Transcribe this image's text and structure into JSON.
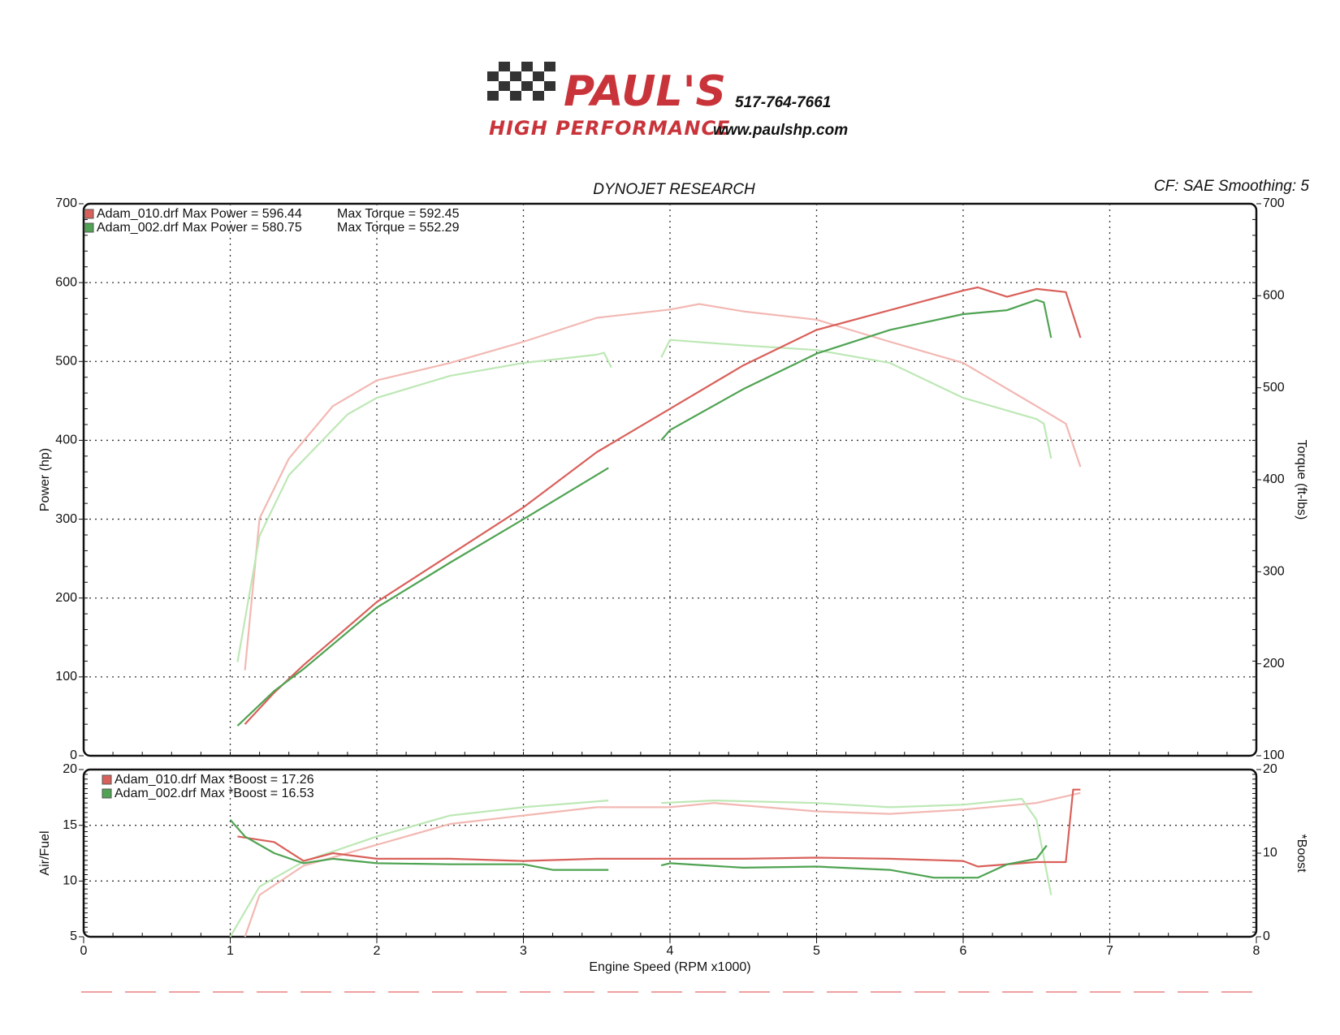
{
  "header": {
    "brand": "PAUL'S",
    "tagline": "HIGH PERFORMANCE",
    "phone": "517-764-7661",
    "website": "www.paulshp.com"
  },
  "chart_data": [
    {
      "type": "line",
      "title": "DYNOJET RESEARCH",
      "subtitle": "CF: SAE  Smoothing: 5",
      "ylabel": "Power (hp)",
      "y2label": "Torque (ft-lbs)",
      "xlim": [
        0,
        8
      ],
      "xticks": [
        0,
        1,
        2,
        3,
        4,
        5,
        6,
        7,
        8
      ],
      "xtick_labels": false,
      "ylim": [
        0,
        700
      ],
      "yticks": [
        0,
        100,
        200,
        300,
        400,
        500,
        600,
        700
      ],
      "y2lim": [
        100,
        700
      ],
      "y2ticks": [
        100,
        200,
        300,
        400,
        500,
        600,
        700
      ],
      "grid": true,
      "legend": "top-left",
      "series": [
        {
          "name": "Adam_010.drf",
          "stats": [
            "Max Power = 596.44",
            "Max Torque = 592.45"
          ],
          "color": "#d9605a",
          "x": [
            1.1,
            1.3,
            1.5,
            2.0,
            2.5,
            3.0,
            3.5,
            4.0,
            4.5,
            5.0,
            5.5,
            6.0,
            6.1,
            6.3,
            6.5,
            6.7,
            6.8
          ],
          "values": [
            40,
            80,
            115,
            195,
            255,
            315,
            385,
            440,
            495,
            540,
            565,
            590,
            594,
            582,
            592,
            588,
            530
          ]
        },
        {
          "name": "Adam_002.drf",
          "stats": [
            "Max Power = 580.75",
            "Max Torque = 552.29"
          ],
          "color": "#4fa352",
          "x": [
            1.05,
            1.3,
            1.5,
            2.0,
            2.5,
            3.0,
            3.58,
            3.75,
            3.94,
            4.0,
            4.5,
            5.0,
            5.5,
            6.0,
            6.3,
            6.5,
            6.55,
            6.6
          ],
          "values": [
            38,
            82,
            110,
            188,
            245,
            300,
            365,
            null,
            400,
            413,
            465,
            510,
            540,
            560,
            565,
            578,
            575,
            530
          ]
        },
        {
          "color": "#f2b8b3",
          "axis": "y2",
          "x": [
            1.1,
            1.2,
            1.4,
            1.7,
            2.0,
            2.5,
            3.0,
            3.5,
            4.0,
            4.2,
            4.5,
            5.0,
            5.5,
            6.0,
            6.5,
            6.7,
            6.8
          ],
          "values": [
            193,
            358,
            423,
            480,
            508,
            527,
            550,
            576,
            585,
            591,
            583,
            574,
            550,
            527,
            480,
            461,
            414
          ]
        },
        {
          "color": "#bde8b5",
          "axis": "y2",
          "x": [
            1.05,
            1.2,
            1.4,
            1.8,
            2.0,
            2.5,
            3.0,
            3.5,
            3.55,
            3.6,
            3.75,
            3.94,
            4.0,
            4.5,
            5.0,
            5.5,
            6.0,
            6.5,
            6.55,
            6.6
          ],
          "values": [
            202,
            339,
            405,
            471,
            489,
            513,
            527,
            536,
            538,
            522,
            null,
            533,
            552,
            546,
            541,
            527,
            489,
            466,
            461,
            423
          ]
        }
      ]
    },
    {
      "type": "line",
      "xlabel": "Engine Speed (RPM x1000)",
      "ylabel": "Air/Fuel",
      "y2label": "*Boost",
      "xlim": [
        0,
        8
      ],
      "xticks": [
        0,
        1,
        2,
        3,
        4,
        5,
        6,
        7,
        8
      ],
      "xtick_labels": true,
      "ylim": [
        5,
        20
      ],
      "yticks": [
        5,
        10,
        15,
        20
      ],
      "y2lim": [
        0,
        20
      ],
      "y2ticks": [
        0,
        10,
        20
      ],
      "grid": true,
      "legend": "top-left",
      "series": [
        {
          "name": "Adam_010.drf",
          "stats": [
            "Max *Boost = 17.26"
          ],
          "color": "#d9605a",
          "x": [
            1.05,
            1.3,
            1.5,
            1.7,
            2.0,
            2.5,
            3.0,
            3.5,
            4.0,
            4.5,
            5.0,
            5.5,
            6.0,
            6.1,
            6.5,
            6.7,
            6.75,
            6.8
          ],
          "values": [
            14.0,
            13.5,
            11.8,
            12.5,
            12.0,
            12.0,
            11.8,
            12.0,
            12.0,
            12.0,
            12.1,
            12.0,
            11.8,
            11.3,
            11.7,
            11.7,
            18.2,
            18.2
          ]
        },
        {
          "name": "Adam_002.drf",
          "stats": [
            "Max *Boost = 16.53"
          ],
          "color": "#4fa352",
          "x": [
            1.0,
            1.1,
            1.3,
            1.5,
            1.7,
            2.0,
            2.5,
            3.0,
            3.2,
            3.58,
            3.75,
            3.94,
            4.0,
            4.5,
            5.0,
            5.5,
            5.8,
            6.1,
            6.3,
            6.5,
            6.57
          ],
          "values": [
            15.5,
            14.0,
            12.5,
            11.6,
            12.0,
            11.6,
            11.5,
            11.5,
            11.0,
            11.0,
            null,
            11.4,
            11.6,
            11.2,
            11.3,
            11.0,
            10.3,
            10.3,
            11.5,
            12.0,
            13.2
          ]
        },
        {
          "color": "#f2b8b3",
          "axis": "y2",
          "x": [
            1.1,
            1.2,
            1.5,
            2.0,
            2.5,
            3.0,
            3.5,
            4.0,
            4.3,
            5.0,
            5.5,
            6.0,
            6.5,
            6.8
          ],
          "values": [
            0,
            5,
            8.5,
            11,
            13.5,
            14.5,
            15.5,
            15.5,
            16,
            15,
            14.7,
            15.2,
            16,
            17.2
          ]
        },
        {
          "color": "#bde8b5",
          "axis": "y2",
          "x": [
            1.0,
            1.2,
            1.5,
            2.0,
            2.5,
            3.0,
            3.58,
            3.75,
            3.94,
            4.3,
            5.0,
            5.5,
            6.0,
            6.4,
            6.5,
            6.6
          ],
          "values": [
            0,
            6,
            9,
            12,
            14.5,
            15.5,
            16.3,
            null,
            16.0,
            16.3,
            16.0,
            15.5,
            15.8,
            16.5,
            14,
            5
          ]
        }
      ]
    }
  ]
}
